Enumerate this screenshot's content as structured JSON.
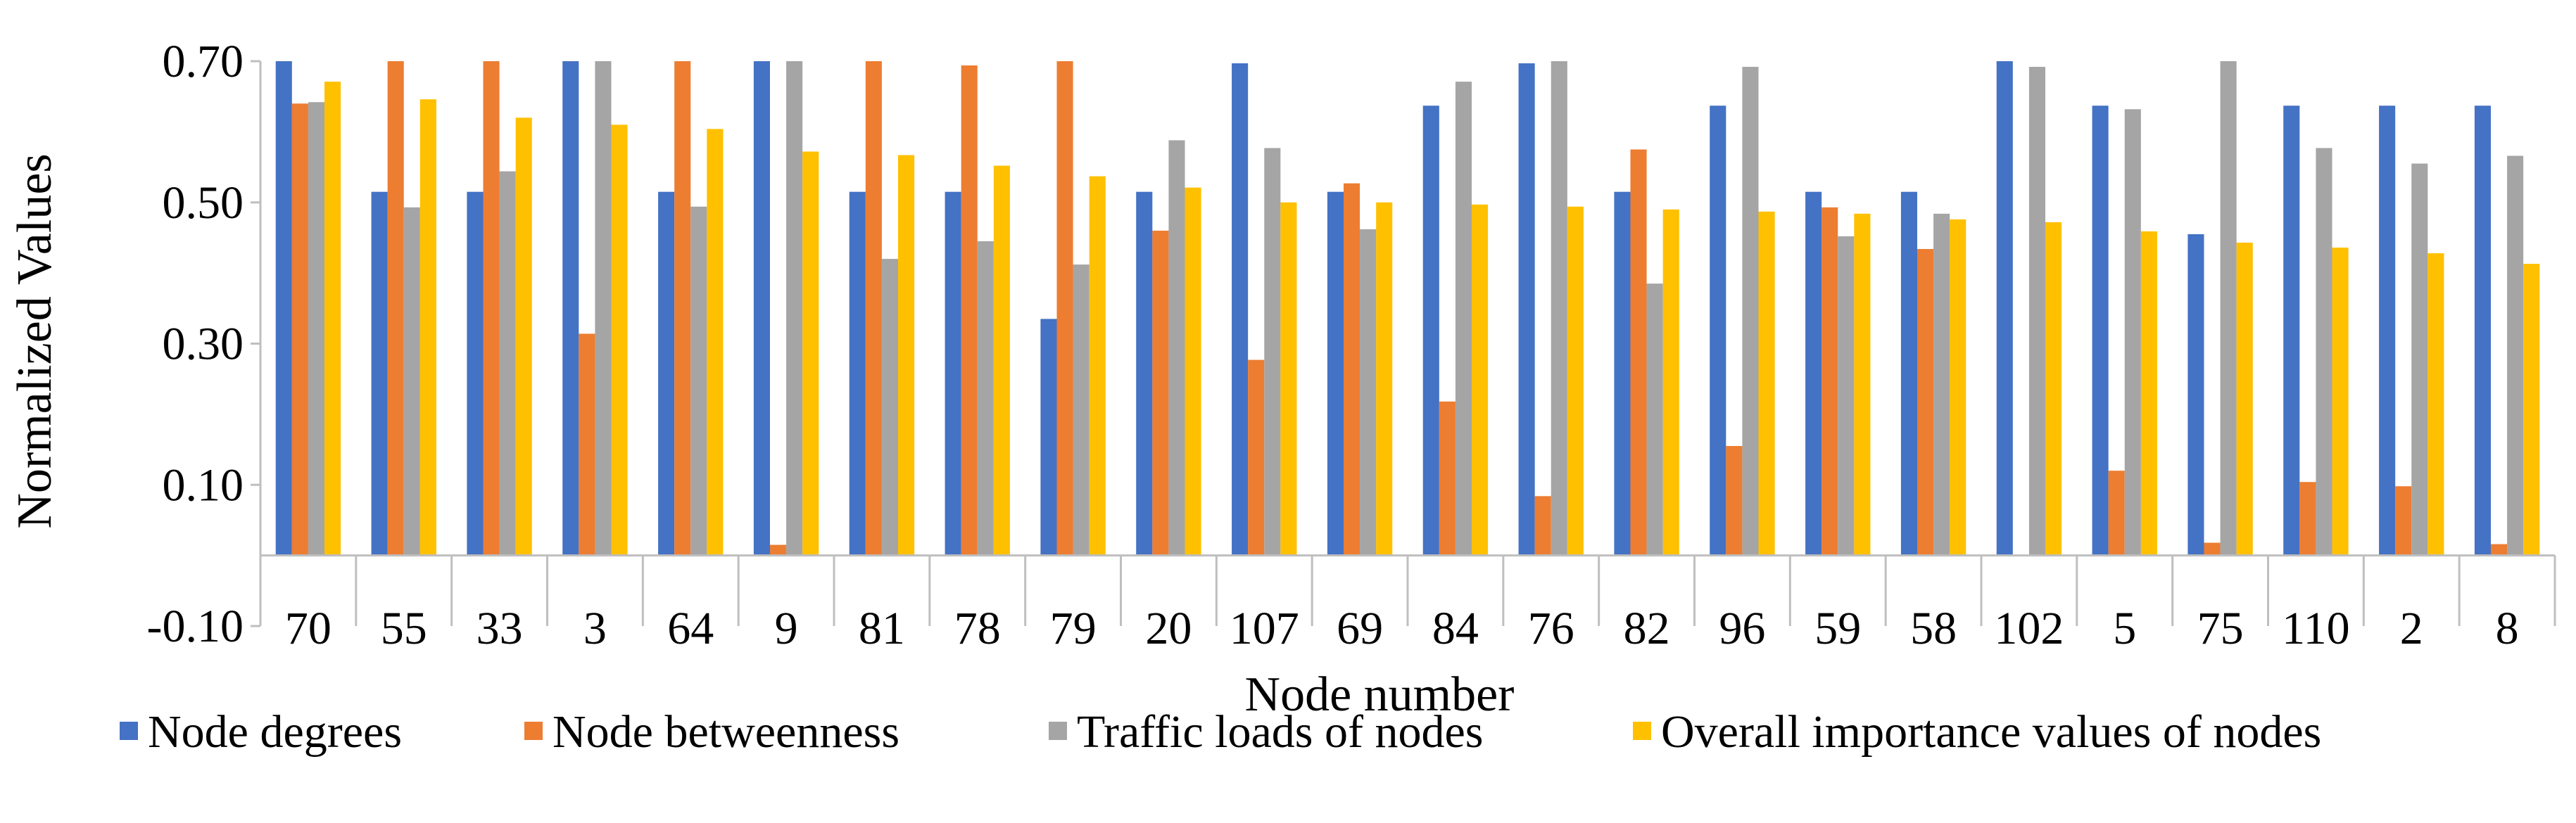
{
  "chart_data": {
    "type": "bar",
    "title": "",
    "xlabel": "Node number",
    "ylabel": "Normalized Values",
    "ylim": [
      -0.1,
      0.7
    ],
    "yticks": [
      -0.1,
      0.1,
      0.3,
      0.5,
      0.7
    ],
    "ytick_labels": [
      "-0.10",
      "0.10",
      "0.30",
      "0.50",
      "0.70"
    ],
    "grid": false,
    "legend_position": "bottom",
    "categories": [
      "70",
      "55",
      "33",
      "3",
      "64",
      "9",
      "81",
      "78",
      "79",
      "20",
      "107",
      "69",
      "84",
      "76",
      "82",
      "96",
      "59",
      "58",
      "102",
      "5",
      "75",
      "110",
      "2",
      "8"
    ],
    "series": [
      {
        "name": "Node degrees",
        "color": "#4472C4",
        "values": [
          0.7,
          0.515,
          0.515,
          0.7,
          0.515,
          0.7,
          0.515,
          0.515,
          0.335,
          0.515,
          0.697,
          0.515,
          0.637,
          0.697,
          0.515,
          0.637,
          0.515,
          0.515,
          0.7,
          0.637,
          0.455,
          0.637,
          0.637,
          0.637
        ]
      },
      {
        "name": "Node betweenness",
        "color": "#ED7D31",
        "values": [
          0.64,
          0.7,
          0.7,
          0.314,
          0.7,
          0.015,
          0.7,
          0.694,
          0.7,
          0.46,
          0.277,
          0.527,
          0.218,
          0.084,
          0.575,
          0.155,
          0.493,
          0.434,
          0.0,
          0.12,
          0.018,
          0.104,
          0.098,
          0.016
        ]
      },
      {
        "name": "Traffic loads of nodes",
        "color": "#A5A5A5",
        "values": [
          0.642,
          0.493,
          0.544,
          0.7,
          0.494,
          0.7,
          0.42,
          0.445,
          0.412,
          0.588,
          0.577,
          0.462,
          0.671,
          0.7,
          0.385,
          0.692,
          0.452,
          0.484,
          0.692,
          0.632,
          0.7,
          0.577,
          0.555,
          0.566
        ]
      },
      {
        "name": "Overall importance values of nodes",
        "color": "#FFC000",
        "values": [
          0.671,
          0.646,
          0.62,
          0.61,
          0.604,
          0.572,
          0.567,
          0.552,
          0.537,
          0.521,
          0.5,
          0.5,
          0.497,
          0.494,
          0.49,
          0.487,
          0.484,
          0.476,
          0.472,
          0.459,
          0.443,
          0.436,
          0.428,
          0.413
        ]
      }
    ]
  }
}
